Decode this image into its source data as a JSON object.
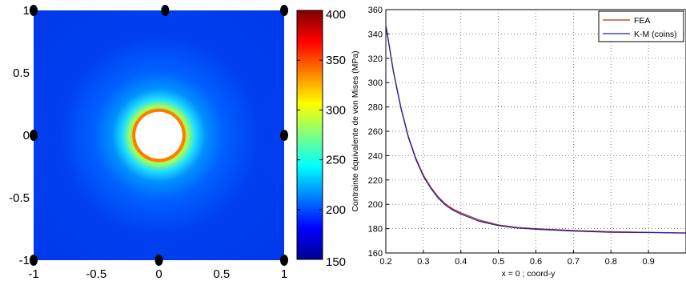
{
  "chart_data": [
    {
      "type": "heatmap",
      "xlim": [
        -1,
        1
      ],
      "ylim": [
        -1,
        1
      ],
      "x_ticks": [
        -1,
        -0.5,
        0,
        0.5,
        1
      ],
      "y_ticks": [
        1,
        0.5,
        0,
        -0.5,
        -1
      ],
      "x_tick_labels": [
        "-1",
        "-0.5",
        "0",
        "0.5",
        "1"
      ],
      "y_tick_labels": [
        "1",
        "0.5",
        "0",
        "-0.5",
        "-1"
      ],
      "hole_center": [
        0,
        0
      ],
      "hole_radius": 0.2,
      "nodes": [
        [
          -1,
          1
        ],
        [
          0.05,
          1
        ],
        [
          1,
          1
        ],
        [
          -1,
          0
        ],
        [
          1,
          0
        ],
        [
          -1,
          -1
        ],
        [
          0,
          -1
        ],
        [
          1,
          -1
        ]
      ],
      "colorbar": {
        "range": [
          150,
          400
        ],
        "ticks": [
          150,
          200,
          250,
          300,
          350,
          400
        ],
        "tick_labels": [
          "150",
          "200",
          "250",
          "300",
          "350",
          "400"
        ],
        "colormap": "jet"
      },
      "colors": {
        "hole": "#ffffff",
        "node": "#000000"
      }
    },
    {
      "type": "line",
      "xlabel": "x = 0 ; coord-y",
      "ylabel": "Contrainte équivalente de von Mises (MPa)",
      "xlim": [
        0.2,
        1.0
      ],
      "ylim": [
        160,
        360
      ],
      "x_ticks": [
        0.2,
        0.3,
        0.4,
        0.5,
        0.6,
        0.7,
        0.8,
        0.9
      ],
      "x_tick_labels": [
        "0.2",
        "0.3",
        "0.4",
        "0.5",
        "0.6",
        "0.7",
        "0.8",
        "0.9"
      ],
      "y_ticks": [
        160,
        180,
        200,
        220,
        240,
        260,
        280,
        300,
        320,
        340,
        360
      ],
      "y_tick_labels": [
        "160",
        "180",
        "200",
        "220",
        "240",
        "260",
        "280",
        "300",
        "320",
        "340",
        "360"
      ],
      "grid": true,
      "legend_position": "top-right",
      "series": [
        {
          "name": "FEA",
          "color": "#b03020",
          "x": [
            0.2,
            0.22,
            0.24,
            0.26,
            0.28,
            0.3,
            0.32,
            0.34,
            0.36,
            0.38,
            0.4,
            0.45,
            0.5,
            0.55,
            0.6,
            0.7,
            0.8,
            0.9,
            1.0
          ],
          "y": [
            348,
            310,
            280,
            256,
            238,
            224,
            214,
            206,
            200,
            196,
            193,
            187,
            183,
            181,
            180,
            178.5,
            177.5,
            177,
            176.5
          ]
        },
        {
          "name": "K-M (coins)",
          "color": "#2020a0",
          "x": [
            0.2,
            0.22,
            0.24,
            0.26,
            0.28,
            0.3,
            0.32,
            0.34,
            0.36,
            0.38,
            0.4,
            0.45,
            0.5,
            0.55,
            0.6,
            0.7,
            0.8,
            0.9,
            1.0
          ],
          "y": [
            347,
            309,
            279,
            255,
            237,
            223,
            213,
            205,
            199,
            195,
            192,
            186,
            182.5,
            180.5,
            179.5,
            178,
            177,
            176.8,
            176.3
          ]
        }
      ]
    }
  ]
}
